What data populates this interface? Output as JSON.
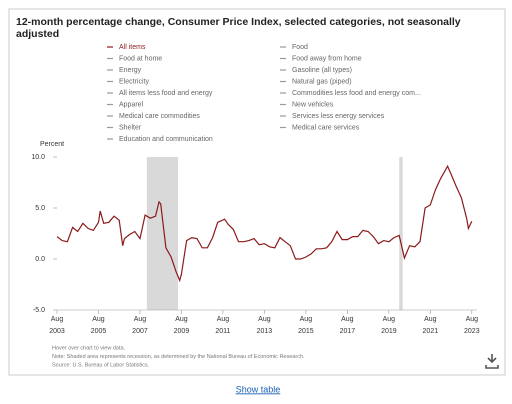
{
  "chart_data": {
    "type": "line",
    "title": "12-month percentage change, Consumer Price Index, selected categories, not seasonally adjusted",
    "ylabel": "Percent",
    "series": [
      {
        "name": "All items",
        "color": "#8b1a1a",
        "x": [
          "2003-08",
          "2003-11",
          "2004-02",
          "2004-05",
          "2004-08",
          "2004-11",
          "2005-02",
          "2005-05",
          "2005-08",
          "2005-09",
          "2005-11",
          "2006-02",
          "2006-05",
          "2006-08",
          "2006-10",
          "2006-11",
          "2007-02",
          "2007-05",
          "2007-08",
          "2007-11",
          "2008-02",
          "2008-05",
          "2008-07",
          "2008-08",
          "2008-11",
          "2009-02",
          "2009-05",
          "2009-07",
          "2009-08",
          "2009-11",
          "2010-02",
          "2010-05",
          "2010-08",
          "2010-11",
          "2011-02",
          "2011-05",
          "2011-09",
          "2011-11",
          "2012-02",
          "2012-05",
          "2012-08",
          "2012-11",
          "2013-02",
          "2013-05",
          "2013-08",
          "2013-11",
          "2014-02",
          "2014-05",
          "2014-08",
          "2014-11",
          "2015-02",
          "2015-05",
          "2015-08",
          "2015-11",
          "2016-02",
          "2016-05",
          "2016-08",
          "2016-11",
          "2017-02",
          "2017-05",
          "2017-08",
          "2017-11",
          "2018-02",
          "2018-05",
          "2018-08",
          "2018-11",
          "2019-02",
          "2019-05",
          "2019-08",
          "2019-11",
          "2020-02",
          "2020-05",
          "2020-08",
          "2020-11",
          "2021-02",
          "2021-05",
          "2021-08",
          "2021-11",
          "2022-02",
          "2022-06",
          "2022-08",
          "2022-11",
          "2023-02",
          "2023-05",
          "2023-06",
          "2023-08"
        ],
        "values": [
          2.2,
          1.8,
          1.7,
          3.1,
          2.7,
          3.5,
          3.0,
          2.8,
          3.6,
          4.7,
          3.5,
          3.6,
          4.2,
          3.8,
          1.3,
          2.0,
          2.4,
          2.7,
          2.0,
          4.3,
          4.0,
          4.2,
          5.6,
          5.4,
          1.1,
          0.2,
          -1.3,
          -2.1,
          -1.5,
          1.8,
          2.1,
          2.0,
          1.1,
          1.1,
          2.1,
          3.6,
          3.9,
          3.4,
          2.9,
          1.7,
          1.7,
          1.8,
          2.0,
          1.4,
          1.5,
          1.2,
          1.1,
          2.1,
          1.7,
          1.3,
          0.0,
          0.0,
          0.2,
          0.5,
          1.0,
          1.0,
          1.1,
          1.7,
          2.7,
          1.9,
          1.9,
          2.2,
          2.2,
          2.8,
          2.7,
          2.2,
          1.5,
          1.8,
          1.7,
          2.1,
          2.3,
          0.1,
          1.3,
          1.2,
          1.7,
          5.0,
          5.3,
          6.8,
          7.9,
          9.1,
          8.3,
          7.1,
          6.0,
          4.0,
          3.0,
          3.7
        ]
      }
    ],
    "inactive_series": [
      "Food",
      "Food at home",
      "Food away from home",
      "Energy",
      "Gasoline (all types)",
      "Electricity",
      "Natural gas (piped)",
      "All items less food and energy",
      "Commodities less food and energy com...",
      "Apparel",
      "New vehicles",
      "Medical care commodities",
      "Services less energy services",
      "Shelter",
      "Medical care services",
      "Education and communication"
    ],
    "inactive_color": "#999999",
    "recessions": [
      [
        "2007-12",
        "2009-06"
      ],
      [
        "2020-02",
        "2020-04"
      ]
    ],
    "recession_color": "#d9d9d9",
    "xlim": [
      "2003-08",
      "2023-11"
    ],
    "xticks": [
      {
        "value": "2003-08",
        "label": "Aug 2003"
      },
      {
        "value": "2005-08",
        "label": "Aug 2005"
      },
      {
        "value": "2007-08",
        "label": "Aug 2007"
      },
      {
        "value": "2009-08",
        "label": "Aug 2009"
      },
      {
        "value": "2011-08",
        "label": "Aug 2011"
      },
      {
        "value": "2013-08",
        "label": "Aug 2013"
      },
      {
        "value": "2015-08",
        "label": "Aug 2015"
      },
      {
        "value": "2017-08",
        "label": "Aug 2017"
      },
      {
        "value": "2019-08",
        "label": "Aug 2019"
      },
      {
        "value": "2021-08",
        "label": "Aug 2021"
      },
      {
        "value": "2023-08",
        "label": "Aug 2023"
      }
    ],
    "ylim": [
      -5,
      10
    ],
    "yticks": [
      {
        "value": 10,
        "label": "10.0"
      },
      {
        "value": 5,
        "label": "5.0"
      },
      {
        "value": 0,
        "label": "0.0"
      },
      {
        "value": -5,
        "label": "-5.0"
      }
    ],
    "grid": false,
    "notes": [
      "Hover over chart to view data.",
      "Note: Shaded area represents recession, as determined by the National Bureau of Economic Research.",
      "Source: U.S. Bureau of Labor Statistics."
    ],
    "link": "Show table"
  }
}
